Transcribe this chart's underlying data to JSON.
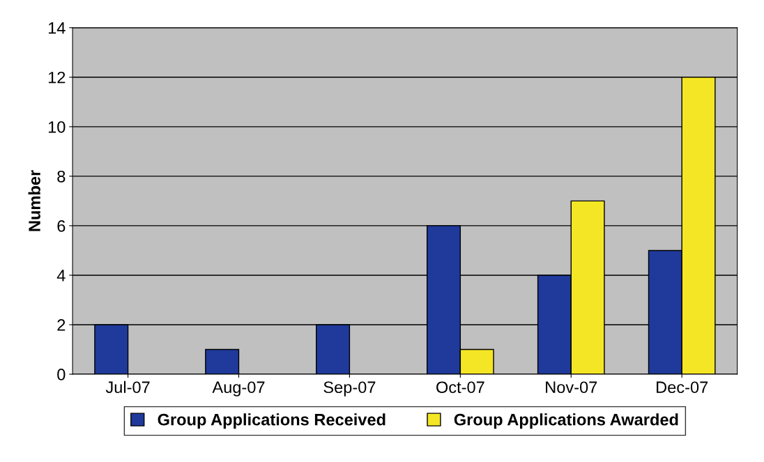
{
  "chart_data": {
    "type": "bar",
    "ylabel": "Number",
    "categories": [
      "Jul-07",
      "Aug-07",
      "Sep-07",
      "Oct-07",
      "Nov-07",
      "Dec-07"
    ],
    "series": [
      {
        "name": "Group Applications Received",
        "color": "#1f3a9a",
        "values": [
          2,
          1,
          2,
          6,
          4,
          5
        ]
      },
      {
        "name": "Group Applications Awarded",
        "color": "#f5e625",
        "values": [
          null,
          null,
          null,
          1,
          7,
          12
        ]
      }
    ],
    "ylim": [
      0,
      14
    ],
    "yticks": [
      0,
      2,
      4,
      6,
      8,
      10,
      12,
      14
    ],
    "grid": "y",
    "legend": "bottom"
  }
}
